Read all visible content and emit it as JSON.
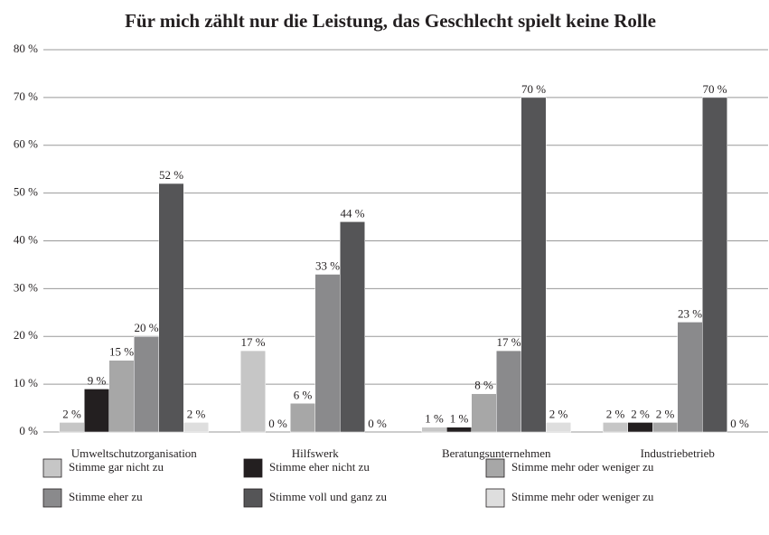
{
  "chart_data": {
    "type": "bar",
    "title": "Für mich zählt nur die Leistung, das Geschlecht spielt keine Rolle",
    "categories": [
      "Umweltschutzorganisation",
      "Hilfswerk",
      "Beratungsunternehmen",
      "Industriebetrieb"
    ],
    "series": [
      {
        "name": "Stimme gar nicht zu",
        "color": "#c6c6c6",
        "values": [
          2,
          17,
          1,
          2
        ],
        "value_labels": [
          "2 %",
          "17 %",
          "1 %",
          "2 %"
        ]
      },
      {
        "name": "Stimme eher nicht zu",
        "color": "#231f20",
        "values": [
          9,
          0,
          1,
          2
        ],
        "value_labels": [
          "9 %",
          "0 %",
          "1 %",
          "2 %"
        ]
      },
      {
        "name": "Stimme mehr oder weniger zu",
        "color": "#a7a7a7",
        "values": [
          15,
          6,
          8,
          2
        ],
        "value_labels": [
          "15 %",
          "6 %",
          "8 %",
          "2 %"
        ]
      },
      {
        "name": "Stimme eher zu",
        "color": "#8a8a8c",
        "values": [
          20,
          33,
          17,
          23
        ],
        "value_labels": [
          "20 %",
          "33 %",
          "17 %",
          "23 %"
        ]
      },
      {
        "name": "Stimme voll und ganz zu",
        "color": "#555557",
        "values": [
          52,
          44,
          70,
          70
        ],
        "value_labels": [
          "52 %",
          "44 %",
          "70 %",
          "70 %"
        ]
      },
      {
        "name": "Stimme mehr oder weniger zu",
        "color": "#dedede",
        "values": [
          2,
          0,
          2,
          0
        ],
        "value_labels": [
          "2 %",
          "0 %",
          "2 %",
          "0 %"
        ]
      }
    ],
    "ylim": [
      0,
      80
    ],
    "yticks": [
      {
        "value": 0,
        "label": "0 %"
      },
      {
        "value": 10,
        "label": "10 %"
      },
      {
        "value": 20,
        "label": "20 %"
      },
      {
        "value": 30,
        "label": "30 %"
      },
      {
        "value": 40,
        "label": "40 %"
      },
      {
        "value": 50,
        "label": "50 %"
      },
      {
        "value": 60,
        "label": "60 %"
      },
      {
        "value": 70,
        "label": "70 %"
      },
      {
        "value": 80,
        "label": "80 %"
      }
    ],
    "grid": true
  }
}
